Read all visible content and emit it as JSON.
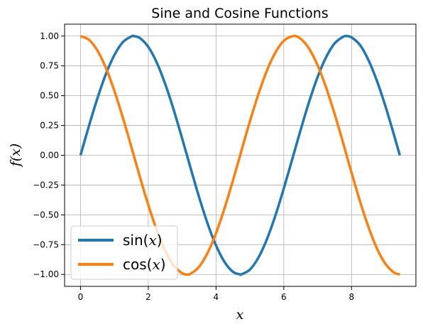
{
  "chart_data": {
    "type": "line",
    "title": "Sine and Cosine Functions",
    "xlabel": "x",
    "ylabel": "f(x)",
    "xlim": [
      -0.47,
      9.9
    ],
    "ylim": [
      -1.1,
      1.1
    ],
    "xticks": [
      0,
      2,
      4,
      6,
      8
    ],
    "xtick_labels": [
      "0",
      "2",
      "4",
      "6",
      "8"
    ],
    "yticks": [
      1.0,
      0.75,
      0.5,
      0.25,
      0.0,
      -0.25,
      -0.5,
      -0.75,
      -1.0
    ],
    "ytick_labels": [
      "1.00",
      "0.75",
      "0.50",
      "0.25",
      "0.00",
      "−0.25",
      "−0.50",
      "−0.75",
      "−1.00"
    ],
    "grid": true,
    "legend_position": "lower-left",
    "x": [
      0,
      0.25,
      0.5,
      0.75,
      1.0,
      1.25,
      1.5,
      1.5708,
      1.75,
      2.0,
      2.25,
      2.5,
      2.75,
      3.0,
      3.1416,
      3.25,
      3.5,
      3.75,
      4.0,
      4.25,
      4.5,
      4.7124,
      4.75,
      5.0,
      5.25,
      5.5,
      5.75,
      6.0,
      6.2832,
      6.5,
      6.75,
      7.0,
      7.25,
      7.5,
      7.75,
      7.854,
      8.0,
      8.25,
      8.5,
      8.75,
      9.0,
      9.25,
      9.4248
    ],
    "series": [
      {
        "name_prefix": "sin(",
        "name_var": "x",
        "name_suffix": ")",
        "color": "#1f77b4",
        "values": [
          0,
          0.247,
          0.479,
          0.682,
          0.841,
          0.949,
          0.997,
          1.0,
          0.984,
          0.909,
          0.778,
          0.598,
          0.382,
          0.141,
          0,
          -0.108,
          -0.351,
          -0.572,
          -0.757,
          -0.895,
          -0.978,
          -1.0,
          -0.999,
          -0.959,
          -0.859,
          -0.706,
          -0.508,
          -0.279,
          0,
          0.215,
          0.451,
          0.657,
          0.823,
          0.938,
          0.994,
          1.0,
          0.989,
          0.925,
          0.798,
          0.624,
          0.412,
          0.174,
          0
        ]
      },
      {
        "name_prefix": "cos(",
        "name_var": "x",
        "name_suffix": ")",
        "color": "#ff7f0e",
        "values": [
          1,
          0.969,
          0.878,
          0.732,
          0.54,
          0.315,
          0.071,
          0,
          -0.178,
          -0.416,
          -0.628,
          -0.801,
          -0.924,
          -0.99,
          -1,
          -0.994,
          -0.936,
          -0.82,
          -0.654,
          -0.446,
          -0.211,
          0,
          0.038,
          0.284,
          0.512,
          0.709,
          0.861,
          0.96,
          1,
          0.977,
          0.893,
          0.754,
          0.568,
          0.347,
          0.106,
          0,
          -0.146,
          -0.386,
          -0.602,
          -0.782,
          -0.911,
          -0.983,
          -1
        ]
      }
    ]
  }
}
